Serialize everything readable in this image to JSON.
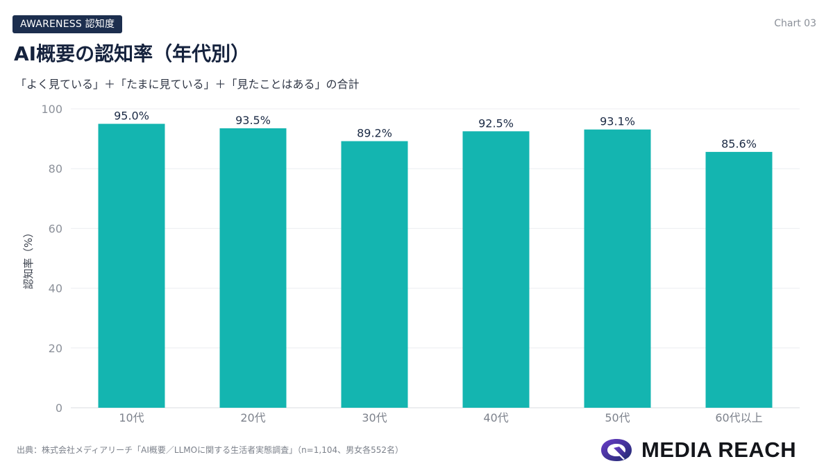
{
  "header": {
    "badge": "AWARENESS  認知度",
    "chart_number": "Chart 03",
    "title": "AI概要の認知率（年代別）",
    "subtitle": "「よく見ている」＋「たまに見ている」＋「見たことはある」の合計"
  },
  "chart_data": {
    "type": "bar",
    "title": "AI概要の認知率（年代別）",
    "xlabel": "",
    "ylabel": "認知率（%）",
    "ylim": [
      0,
      100
    ],
    "yticks": [
      0,
      20,
      40,
      60,
      80,
      100
    ],
    "categories": [
      "10代",
      "20代",
      "30代",
      "40代",
      "50代",
      "60代以上"
    ],
    "values": [
      95.0,
      93.5,
      89.2,
      92.5,
      93.1,
      85.6
    ],
    "value_labels": [
      "95.0%",
      "93.5%",
      "89.2%",
      "92.5%",
      "93.1%",
      "85.6%"
    ],
    "grid": true,
    "bar_color": "#14b5b0"
  },
  "footer": {
    "source": "出典：株式会社メディアリーチ「AI概要／LLMOに関する生活者実態調査」（n=1,104、男女各552名）",
    "logo_text": "MEDIA REACH"
  }
}
